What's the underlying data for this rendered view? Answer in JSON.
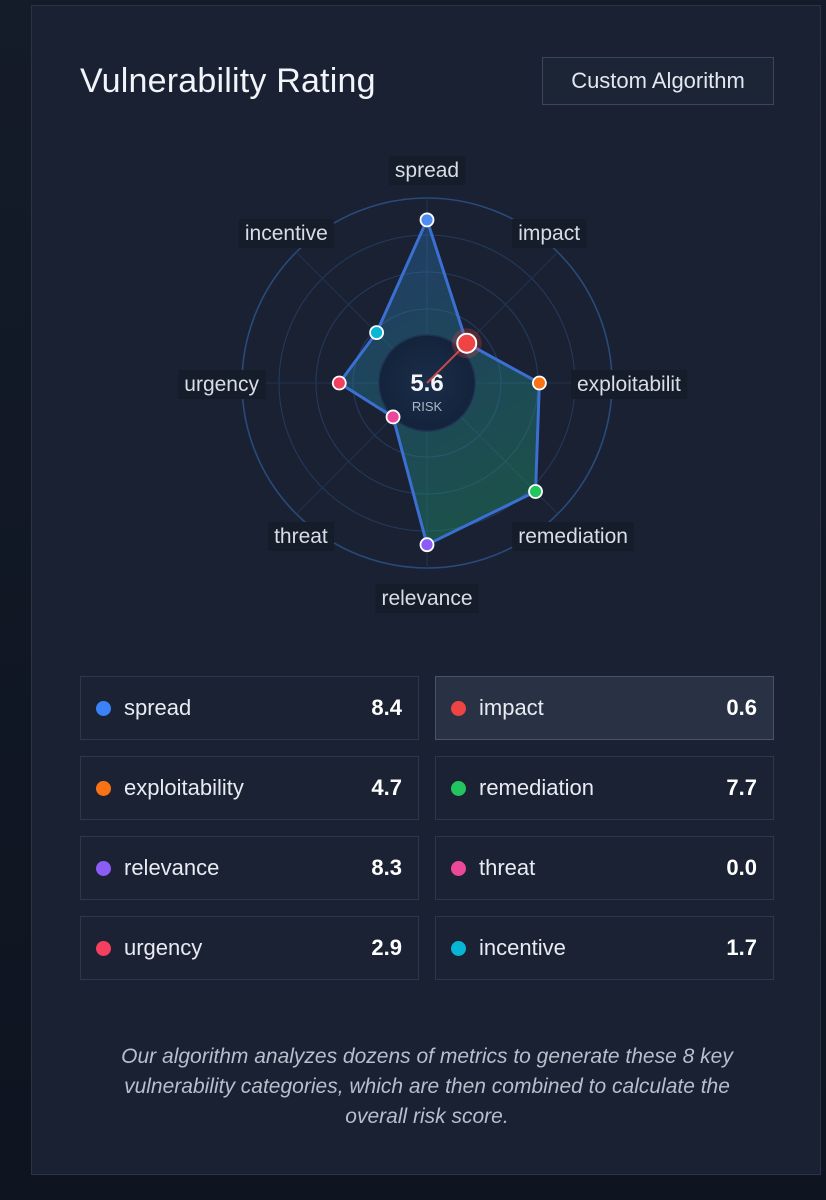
{
  "header": {
    "title": "Vulnerability Rating",
    "button_label": "Custom Algorithm"
  },
  "radar": {
    "score": "5.6",
    "score_label": "RISK",
    "max": 10,
    "highlight": "impact",
    "axes": [
      {
        "key": "spread",
        "label": "spread",
        "value": 8.4,
        "color": "#4f8cf0"
      },
      {
        "key": "impact",
        "label": "impact",
        "value": 0.6,
        "color": "#ef4444"
      },
      {
        "key": "exploitability",
        "label": "exploitabilit",
        "value": 4.7,
        "color": "#f97316"
      },
      {
        "key": "remediation",
        "label": "remediation",
        "value": 7.7,
        "color": "#22c55e"
      },
      {
        "key": "relevance",
        "label": "relevance",
        "value": 8.3,
        "color": "#8b5cf6"
      },
      {
        "key": "threat",
        "label": "threat",
        "value": 0.0,
        "color": "#ec4899"
      },
      {
        "key": "urgency",
        "label": "urgency",
        "value": 2.9,
        "color": "#f43f5e"
      },
      {
        "key": "incentive",
        "label": "incentive",
        "value": 1.7,
        "color": "#06b6d4"
      }
    ]
  },
  "metrics": [
    {
      "name": "spread",
      "value": "8.4",
      "color": "#3b82f6"
    },
    {
      "name": "impact",
      "value": "0.6",
      "color": "#ef4444"
    },
    {
      "name": "exploitability",
      "value": "4.7",
      "color": "#f97316"
    },
    {
      "name": "remediation",
      "value": "7.7",
      "color": "#22c55e"
    },
    {
      "name": "relevance",
      "value": "8.3",
      "color": "#8b5cf6"
    },
    {
      "name": "threat",
      "value": "0.0",
      "color": "#ec4899"
    },
    {
      "name": "urgency",
      "value": "2.9",
      "color": "#f43f5e"
    },
    {
      "name": "incentive",
      "value": "1.7",
      "color": "#06b6d4"
    }
  ],
  "footer": {
    "text": "Our algorithm analyzes dozens of metrics to generate these 8 key vulnerability categories, which are then combined to calculate the overall risk score."
  }
}
